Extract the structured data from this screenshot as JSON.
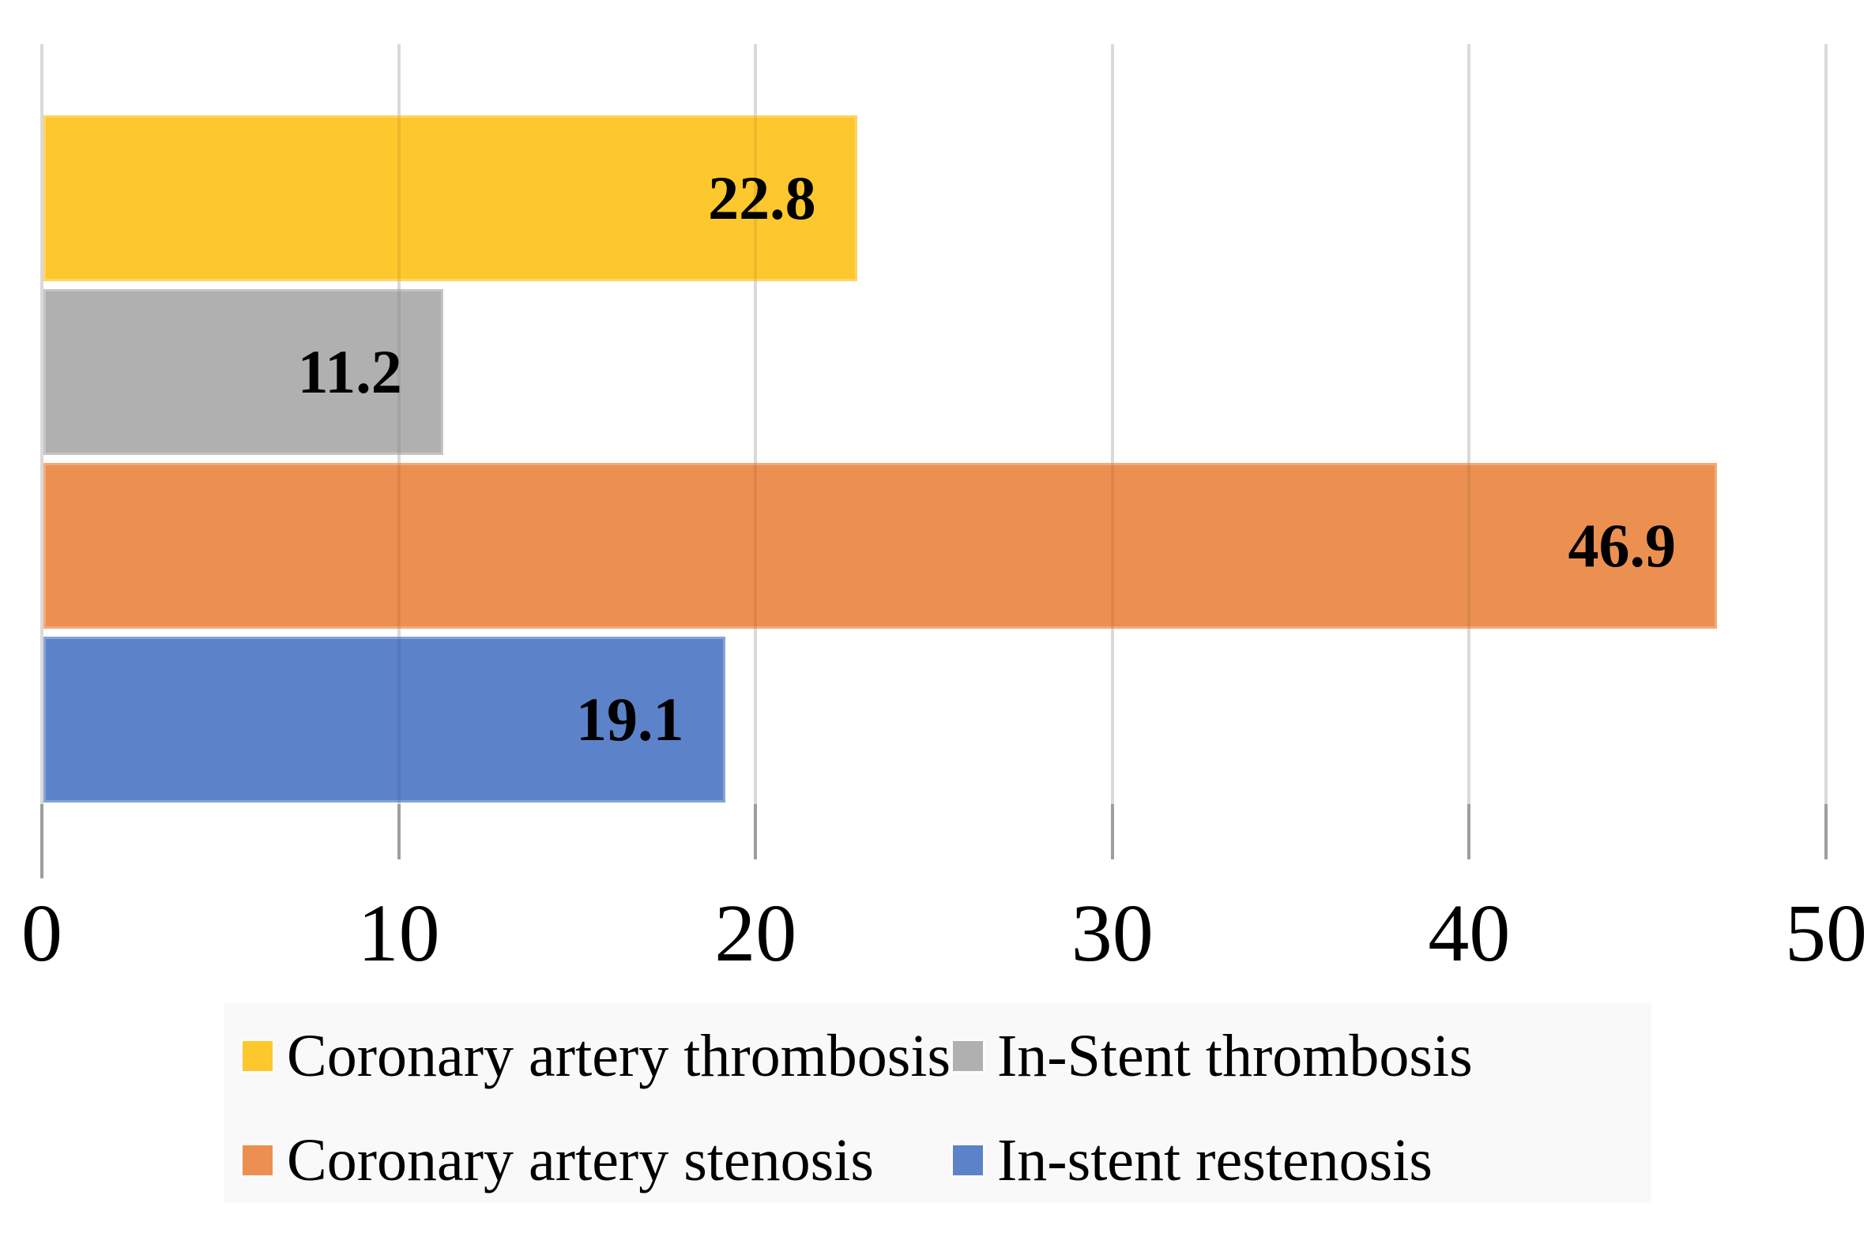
{
  "chart_data": {
    "type": "bar",
    "orientation": "horizontal",
    "title": "",
    "xlabel": "",
    "ylabel": "",
    "xlim": [
      0,
      50
    ],
    "x_ticks": [
      "0",
      "10",
      "20",
      "30",
      "40",
      "50"
    ],
    "grid": "vertical-gridlines-on",
    "legend_position": "bottom",
    "categories": [
      "Coronary artery thrombosis",
      "In-Stent thrombosis",
      "Coronary artery stenosis",
      "In-stent restenosis"
    ],
    "values": [
      22.8,
      11.2,
      46.9,
      19.1
    ],
    "series": [
      {
        "name": "Coronary artery thrombosis",
        "value": 22.8,
        "data_label": "22.8",
        "color": "#FDC72E"
      },
      {
        "name": "In-Stent thrombosis",
        "value": 11.2,
        "data_label": "11.2",
        "color": "#B0B0B0"
      },
      {
        "name": "Coronary artery stenosis",
        "value": 46.9,
        "data_label": "46.9",
        "color": "#EC9051"
      },
      {
        "name": "In-stent restenosis",
        "value": 19.1,
        "data_label": "19.1",
        "color": "#5C83CA"
      }
    ],
    "legend": [
      {
        "label": "Coronary artery thrombosis",
        "color": "#FDC72E"
      },
      {
        "label": "In-Stent thrombosis",
        "color": "#B0B0B0"
      },
      {
        "label": "Coronary artery stenosis",
        "color": "#EC9051"
      },
      {
        "label": "In-stent restenosis",
        "color": "#5C83CA"
      }
    ]
  },
  "colors": {
    "background": "#FFFFFF",
    "gridline": "#D9D9D9",
    "tickmark": "#9E9E9E",
    "legend_background": "#F9F9F9",
    "text": "#000000"
  }
}
